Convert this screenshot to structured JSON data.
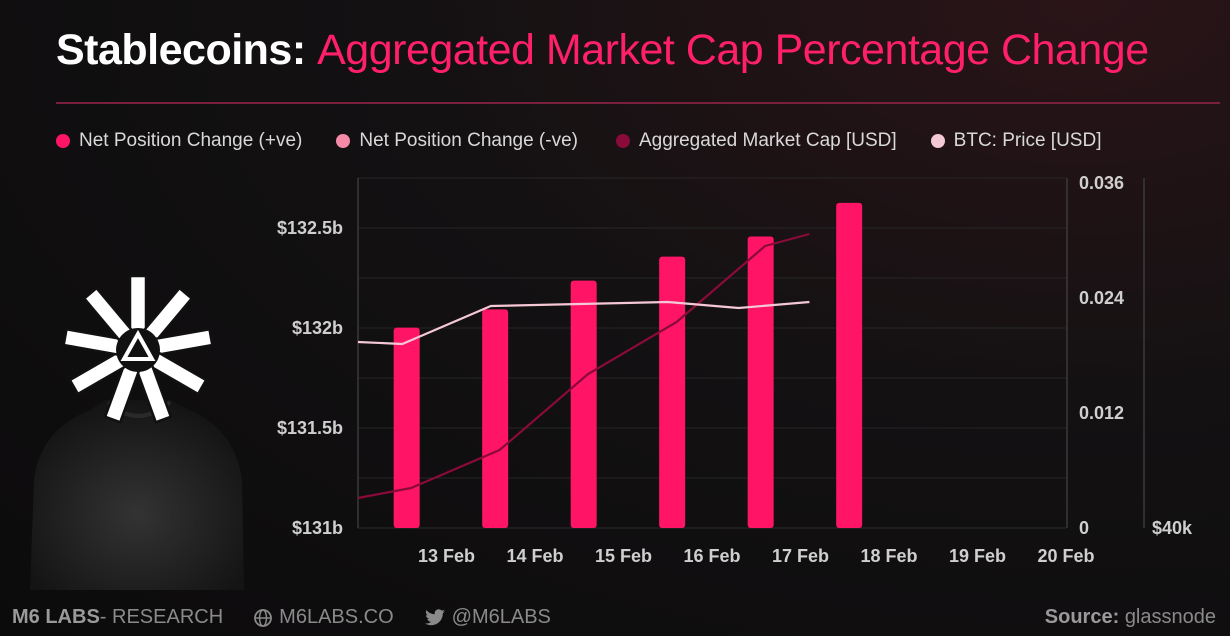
{
  "header": {
    "title_prefix": "Stablecoins:",
    "title_main": "Aggregated Market Cap Percentage Change"
  },
  "legend": [
    {
      "label": "Net Position Change (+ve)",
      "color": "#ff1466"
    },
    {
      "label": "Net Position Change (-ve)",
      "color": "#f58aa8"
    },
    {
      "label": "Aggregated Market Cap [USD]",
      "color": "#8a0a3a"
    },
    {
      "label": "BTC: Price [USD]",
      "color": "#f5c8d6"
    }
  ],
  "footer": {
    "brand_bold": "M6 LABS",
    "brand_rest": " - RESEARCH",
    "website": "M6LABS.CO",
    "twitter": "@M6LABS",
    "source_label": "Source:",
    "source_value": "glassnode"
  },
  "chart_data": {
    "type": "bar",
    "title": "Stablecoins: Aggregated Market Cap Percentage Change",
    "categories": [
      "13 Feb",
      "14 Feb",
      "15 Feb",
      "16 Feb",
      "17 Feb",
      "18 Feb",
      "19 Feb",
      "20 Feb"
    ],
    "left_axis": {
      "ticks": [
        "$131b",
        "$131.5b",
        "$132b",
        "$132.5b"
      ],
      "range": [
        131,
        132.75
      ]
    },
    "right_axis": {
      "ticks": [
        "0",
        "0.012",
        "0.024",
        "0.036"
      ],
      "range": [
        0,
        0.0365
      ]
    },
    "btc_axis": {
      "ticks": [
        "$40k"
      ]
    },
    "series": [
      {
        "name": "Net Position Change (+ve)",
        "type": "bar",
        "axis": "right",
        "x": [
          12.55,
          13.55,
          14.55,
          15.55,
          16.55,
          17.55
        ],
        "values": [
          0.0209,
          0.0228,
          0.0258,
          0.0283,
          0.0304,
          0.0339
        ]
      },
      {
        "name": "Aggregated Market Cap [USD]",
        "type": "line",
        "axis": "left",
        "x": [
          12.0,
          12.6,
          13.6,
          14.6,
          15.6,
          16.6,
          17.1
        ],
        "values": [
          131.15,
          131.2,
          131.39,
          131.77,
          132.03,
          132.41,
          132.47
        ]
      },
      {
        "name": "BTC: Price [USD]",
        "type": "line",
        "axis": "left",
        "x": [
          12.0,
          12.5,
          13.5,
          14.5,
          15.5,
          16.3,
          17.1
        ],
        "values": [
          131.93,
          131.92,
          132.11,
          132.12,
          132.13,
          132.1,
          132.13
        ]
      }
    ]
  }
}
